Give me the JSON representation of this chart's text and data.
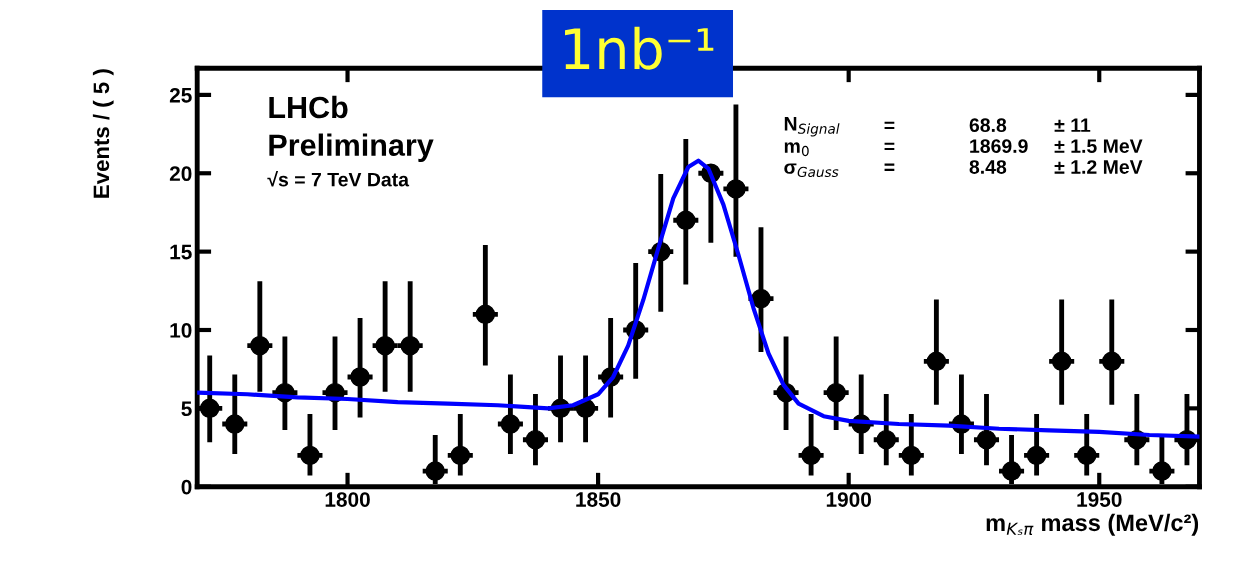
{
  "chart_data": {
    "type": "scatter",
    "xlabel": "m$_{Kₛπ}$ mass (MeV/c²)",
    "ylabel": "Events / ( 5 )",
    "xlim": [
      1770,
      1970
    ],
    "xticks": [
      1800,
      1850,
      1900,
      1950
    ],
    "ylim": [
      0,
      26.7
    ],
    "yticks": [
      0,
      5,
      10,
      15,
      20,
      25
    ],
    "grid": false,
    "legend": false,
    "marker": "circle",
    "series": [
      {
        "color": "#000000",
        "x": [
          1772.5,
          1777.5,
          1782.5,
          1787.5,
          1792.5,
          1797.5,
          1802.5,
          1807.5,
          1812.5,
          1817.5,
          1822.5,
          1827.5,
          1832.5,
          1837.5,
          1842.5,
          1847.5,
          1852.5,
          1857.5,
          1862.5,
          1867.5,
          1872.5,
          1877.5,
          1882.5,
          1887.5,
          1892.5,
          1897.5,
          1902.5,
          1907.5,
          1912.5,
          1917.5,
          1922.5,
          1927.5,
          1932.5,
          1937.5,
          1942.5,
          1947.5,
          1952.5,
          1957.5,
          1962.5,
          1967.5
        ],
        "values": [
          5,
          4,
          9,
          6,
          2,
          6,
          7,
          9,
          9,
          1,
          2,
          11,
          4,
          3,
          5,
          5,
          7,
          10,
          15,
          17,
          20,
          19,
          12,
          6,
          2,
          6,
          4,
          3,
          2,
          8,
          4,
          3,
          1,
          2,
          8,
          2,
          8,
          3,
          1,
          3
        ],
        "errors": [
          [
            2.84,
            8.38
          ],
          [
            2.09,
            7.16
          ],
          [
            6.06,
            13.11
          ],
          [
            3.62,
            9.58
          ],
          [
            0.71,
            4.64
          ],
          [
            3.62,
            9.58
          ],
          [
            4.42,
            10.77
          ],
          [
            6.06,
            13.11
          ],
          [
            6.06,
            13.11
          ],
          [
            0.17,
            3.3
          ],
          [
            0.71,
            4.64
          ],
          [
            7.74,
            15.42
          ],
          [
            2.09,
            7.16
          ],
          [
            1.37,
            5.92
          ],
          [
            2.84,
            8.38
          ],
          [
            2.84,
            8.38
          ],
          [
            4.42,
            10.77
          ],
          [
            6.89,
            14.27
          ],
          [
            11.17,
            19.95
          ],
          [
            12.91,
            22.18
          ],
          [
            15.57,
            20
          ],
          [
            14.67,
            24.38
          ],
          [
            8.59,
            16.56
          ],
          [
            3.62,
            9.58
          ],
          [
            0.71,
            4.64
          ],
          [
            3.62,
            9.58
          ],
          [
            2.09,
            7.16
          ],
          [
            1.37,
            5.92
          ],
          [
            0.71,
            4.64
          ],
          [
            5.23,
            11.95
          ],
          [
            2.09,
            7.16
          ],
          [
            1.37,
            5.92
          ],
          [
            0.17,
            3.3
          ],
          [
            0.71,
            4.64
          ],
          [
            5.23,
            11.95
          ],
          [
            0.71,
            4.64
          ],
          [
            5.23,
            11.95
          ],
          [
            1.37,
            5.92
          ],
          [
            0.17,
            3.3
          ],
          [
            1.37,
            5.92
          ]
        ],
        "xerrors": [
          2.5,
          2.5,
          2.5,
          2.5,
          2.5,
          2.5,
          2.5,
          2.5,
          2.5,
          2.5,
          2.5,
          2.5,
          2.5,
          2.5,
          2.5,
          2.5,
          2.5,
          2.5,
          2.5,
          2.5,
          2.5,
          2.5,
          2.5,
          2.5,
          2.5,
          2.5,
          2.5,
          2.5,
          2.5,
          2.5,
          2.5,
          2.5,
          2.5,
          2.5,
          2.5,
          2.5,
          2.5,
          2.5,
          2.5,
          2.5
        ]
      },
      {
        "type": "line",
        "color": "#0000ff",
        "line_style": "solid",
        "marker": "none",
        "x": [
          1770,
          1780,
          1790,
          1800,
          1810,
          1820,
          1830,
          1840,
          1845,
          1850,
          1853,
          1856,
          1859,
          1862,
          1865,
          1868,
          1870,
          1872,
          1875,
          1878,
          1881,
          1884,
          1887,
          1890,
          1895,
          1900,
          1910,
          1920,
          1930,
          1940,
          1950,
          1960,
          1970
        ],
        "values": [
          6.0,
          5.9,
          5.7,
          5.6,
          5.4,
          5.3,
          5.2,
          5.0,
          5.2,
          5.9,
          7.0,
          9.0,
          11.9,
          15.2,
          18.4,
          20.4,
          20.8,
          20.3,
          18.0,
          14.8,
          11.4,
          8.5,
          6.5,
          5.3,
          4.5,
          4.2,
          4.0,
          3.9,
          3.7,
          3.6,
          3.5,
          3.3,
          3.2
        ]
      }
    ],
    "annotations": [
      "LHCb",
      "Preliminary",
      "√s = 7 TeV Data",
      "N$_{Signal}$",
      "=",
      "68.8",
      "± 11",
      "m$_{0}$",
      "=",
      "1869.9",
      "± 1.5 MeV",
      "σ$_{Gauss}$",
      "=",
      "8.48",
      "± 1.2 MeV",
      "1nb⁻¹"
    ]
  }
}
